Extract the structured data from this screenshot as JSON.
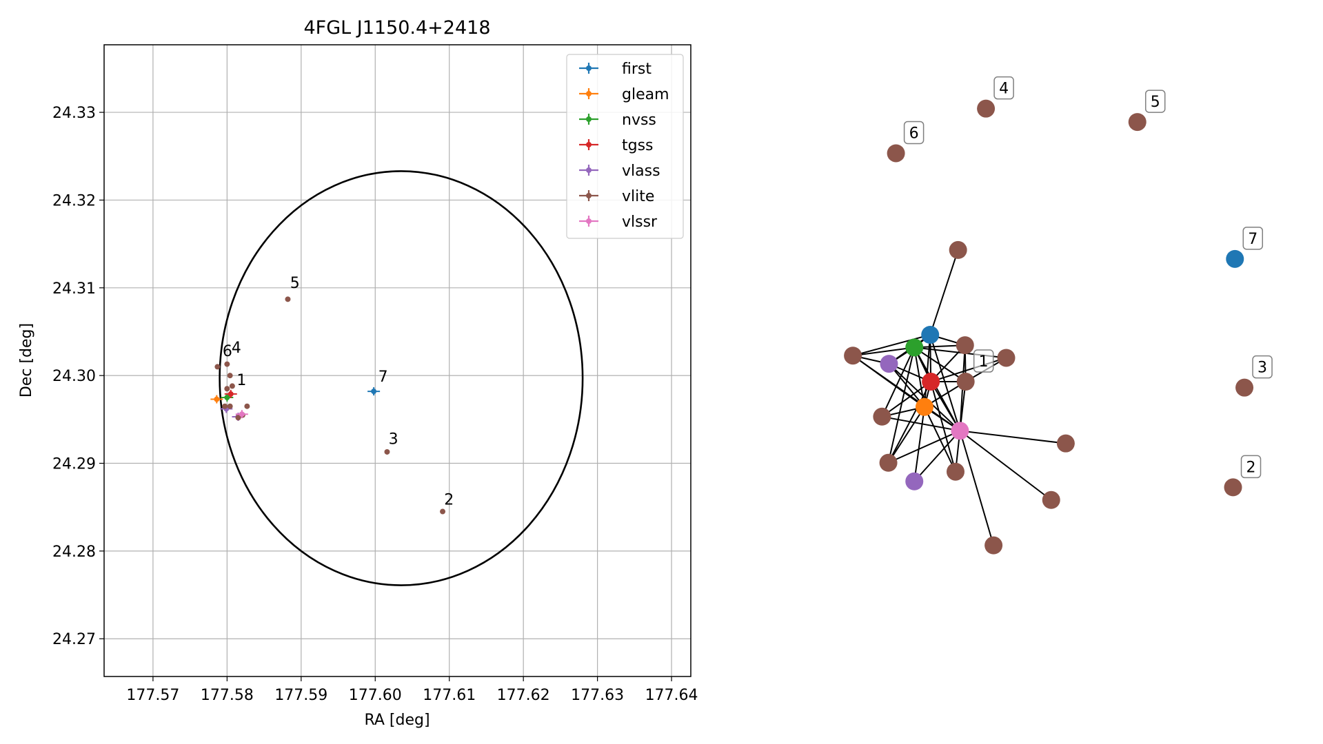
{
  "chart_data": [
    {
      "type": "scatter",
      "title": "4FGL J1150.4+2418",
      "xlabel": "RA [deg]",
      "ylabel": "Dec [deg]",
      "xlim": [
        177.5634,
        177.6426
      ],
      "ylim": [
        24.2657,
        24.3377
      ],
      "xticks": [
        177.57,
        177.58,
        177.59,
        177.6,
        177.61,
        177.62,
        177.63,
        177.64
      ],
      "xtick_labels": [
        "177.57",
        "177.58",
        "177.59",
        "177.60",
        "177.61",
        "177.62",
        "177.63",
        "177.64"
      ],
      "yticks": [
        24.27,
        24.28,
        24.29,
        24.3,
        24.31,
        24.32,
        24.33
      ],
      "ytick_labels": [
        "24.27",
        "24.28",
        "24.29",
        "24.30",
        "24.31",
        "24.32",
        "24.33"
      ],
      "grid": true,
      "legend_position": "upper right",
      "error_ellipse": {
        "center": [
          177.6035,
          24.2997
        ],
        "semi_axis_x": 0.0245,
        "semi_axis_y": 0.0236,
        "color": "#000000"
      },
      "series": [
        {
          "name": "first",
          "color": "#1f77b4",
          "points": [
            [
              177.5998,
              24.2982
            ]
          ]
        },
        {
          "name": "gleam",
          "color": "#ff7f0e",
          "points": [
            [
              177.5786,
              24.2973
            ]
          ]
        },
        {
          "name": "nvss",
          "color": "#2ca02c",
          "points": [
            [
              177.58,
              24.2975
            ]
          ]
        },
        {
          "name": "tgss",
          "color": "#d62728",
          "points": [
            [
              177.5805,
              24.2979
            ]
          ]
        },
        {
          "name": "vlass",
          "color": "#9467bd",
          "points": [
            [
              177.5799,
              24.2962
            ],
            [
              177.5815,
              24.2953
            ]
          ]
        },
        {
          "name": "vlite",
          "color": "#8c564b",
          "points": [
            [
              177.6091,
              24.2845
            ],
            [
              177.6016,
              24.2913
            ],
            [
              177.5882,
              24.3087
            ],
            [
              177.58,
              24.3013
            ],
            [
              177.5787,
              24.301
            ],
            [
              177.5804,
              24.3
            ],
            [
              177.58,
              24.2985
            ],
            [
              177.5807,
              24.2988
            ],
            [
              177.5797,
              24.2965
            ],
            [
              177.5804,
              24.2965
            ],
            [
              177.5827,
              24.2965
            ],
            [
              177.5815,
              24.2952
            ],
            [
              177.5821,
              24.2955
            ]
          ]
        },
        {
          "name": "vlssr",
          "color": "#e377c2",
          "points": [
            [
              177.582,
              24.2956
            ]
          ]
        }
      ],
      "annotations": [
        {
          "text": "1",
          "x": 177.5813,
          "y": 24.2989
        },
        {
          "text": "2",
          "x": 177.6093,
          "y": 24.2853
        },
        {
          "text": "3",
          "x": 177.6018,
          "y": 24.2922
        },
        {
          "text": "4",
          "x": 177.5806,
          "y": 24.3026
        },
        {
          "text": "5",
          "x": 177.5885,
          "y": 24.31
        },
        {
          "text": "6",
          "x": 177.5794,
          "y": 24.3022
        },
        {
          "text": "7",
          "x": 177.6004,
          "y": 24.2993
        }
      ]
    },
    {
      "type": "network",
      "nodes": [
        {
          "id": "n1",
          "catalog": "first",
          "color": "#1f77b4",
          "label": "",
          "pos": [
            0.38,
            0.45
          ]
        },
        {
          "id": "n2",
          "catalog": "nvss",
          "color": "#2ca02c",
          "label": "",
          "pos": [
            0.355,
            0.467
          ]
        },
        {
          "id": "n3",
          "catalog": "vlass",
          "color": "#9467bd",
          "label": "",
          "pos": [
            0.315,
            0.489
          ]
        },
        {
          "id": "n4",
          "catalog": "tgss",
          "color": "#d62728",
          "label": "",
          "pos": [
            0.381,
            0.513
          ]
        },
        {
          "id": "n5",
          "catalog": "gleam",
          "color": "#ff7f0e",
          "label": "",
          "pos": [
            0.371,
            0.547
          ]
        },
        {
          "id": "n6",
          "catalog": "vlssr",
          "color": "#e377c2",
          "label": "",
          "pos": [
            0.427,
            0.579
          ]
        },
        {
          "id": "n7",
          "catalog": "vlass",
          "color": "#9467bd",
          "label": "",
          "pos": [
            0.355,
            0.647
          ]
        },
        {
          "id": "n8",
          "catalog": "vlite",
          "color": "#8c564b",
          "label": "",
          "pos": [
            0.424,
            0.336
          ]
        },
        {
          "id": "n9",
          "catalog": "vlite",
          "color": "#8c564b",
          "label": "",
          "pos": [
            0.258,
            0.478
          ]
        },
        {
          "id": "n10",
          "catalog": "vlite",
          "color": "#8c564b",
          "label": "",
          "pos": [
            0.435,
            0.464
          ]
        },
        {
          "id": "n11",
          "catalog": "vlite",
          "color": "#8c564b",
          "label": "",
          "pos": [
            0.5,
            0.481
          ]
        },
        {
          "id": "n12",
          "catalog": "vlite",
          "color": "#8c564b",
          "label": "1",
          "pos": [
            0.436,
            0.513
          ]
        },
        {
          "id": "n13",
          "catalog": "vlite",
          "color": "#8c564b",
          "label": "",
          "pos": [
            0.304,
            0.56
          ]
        },
        {
          "id": "n14",
          "catalog": "vlite",
          "color": "#8c564b",
          "label": "",
          "pos": [
            0.314,
            0.622
          ]
        },
        {
          "id": "n15",
          "catalog": "vlite",
          "color": "#8c564b",
          "label": "",
          "pos": [
            0.42,
            0.634
          ]
        },
        {
          "id": "n16",
          "catalog": "vlite",
          "color": "#8c564b",
          "label": "",
          "pos": [
            0.594,
            0.596
          ]
        },
        {
          "id": "n17",
          "catalog": "vlite",
          "color": "#8c564b",
          "label": "",
          "pos": [
            0.571,
            0.672
          ]
        },
        {
          "id": "n18",
          "catalog": "vlite",
          "color": "#8c564b",
          "label": "",
          "pos": [
            0.48,
            0.733
          ]
        },
        {
          "id": "n19",
          "catalog": "vlite",
          "color": "#8c564b",
          "label": "6",
          "pos": [
            0.326,
            0.206
          ]
        },
        {
          "id": "n20",
          "catalog": "vlite",
          "color": "#8c564b",
          "label": "4",
          "pos": [
            0.468,
            0.146
          ]
        },
        {
          "id": "n21",
          "catalog": "vlite",
          "color": "#8c564b",
          "label": "5",
          "pos": [
            0.707,
            0.164
          ]
        },
        {
          "id": "n22",
          "catalog": "first",
          "color": "#1f77b4",
          "label": "7",
          "pos": [
            0.861,
            0.348
          ]
        },
        {
          "id": "n23",
          "catalog": "vlite",
          "color": "#8c564b",
          "label": "3",
          "pos": [
            0.876,
            0.521
          ]
        },
        {
          "id": "n24",
          "catalog": "vlite",
          "color": "#8c564b",
          "label": "2",
          "pos": [
            0.858,
            0.655
          ]
        }
      ],
      "edges": [
        [
          "n1",
          "n2"
        ],
        [
          "n1",
          "n3"
        ],
        [
          "n1",
          "n4"
        ],
        [
          "n1",
          "n5"
        ],
        [
          "n1",
          "n6"
        ],
        [
          "n1",
          "n9"
        ],
        [
          "n1",
          "n10"
        ],
        [
          "n1",
          "n8"
        ],
        [
          "n2",
          "n3"
        ],
        [
          "n2",
          "n4"
        ],
        [
          "n2",
          "n5"
        ],
        [
          "n2",
          "n6"
        ],
        [
          "n2",
          "n9"
        ],
        [
          "n2",
          "n10"
        ],
        [
          "n2",
          "n11"
        ],
        [
          "n2",
          "n12"
        ],
        [
          "n2",
          "n13"
        ],
        [
          "n2",
          "n14"
        ],
        [
          "n3",
          "n4"
        ],
        [
          "n3",
          "n5"
        ],
        [
          "n3",
          "n6"
        ],
        [
          "n3",
          "n9"
        ],
        [
          "n4",
          "n5"
        ],
        [
          "n4",
          "n6"
        ],
        [
          "n4",
          "n10"
        ],
        [
          "n4",
          "n11"
        ],
        [
          "n4",
          "n12"
        ],
        [
          "n4",
          "n13"
        ],
        [
          "n4",
          "n14"
        ],
        [
          "n4",
          "n15"
        ],
        [
          "n5",
          "n6"
        ],
        [
          "n5",
          "n9"
        ],
        [
          "n5",
          "n12"
        ],
        [
          "n5",
          "n13"
        ],
        [
          "n5",
          "n14"
        ],
        [
          "n5",
          "n7"
        ],
        [
          "n5",
          "n15"
        ],
        [
          "n6",
          "n12"
        ],
        [
          "n6",
          "n13"
        ],
        [
          "n6",
          "n14"
        ],
        [
          "n6",
          "n7"
        ],
        [
          "n6",
          "n15"
        ],
        [
          "n6",
          "n16"
        ],
        [
          "n6",
          "n17"
        ],
        [
          "n6",
          "n18"
        ],
        [
          "n6",
          "n9"
        ],
        [
          "n6",
          "n10"
        ],
        [
          "n12",
          "n10"
        ],
        [
          "n12",
          "n11"
        ]
      ]
    }
  ]
}
